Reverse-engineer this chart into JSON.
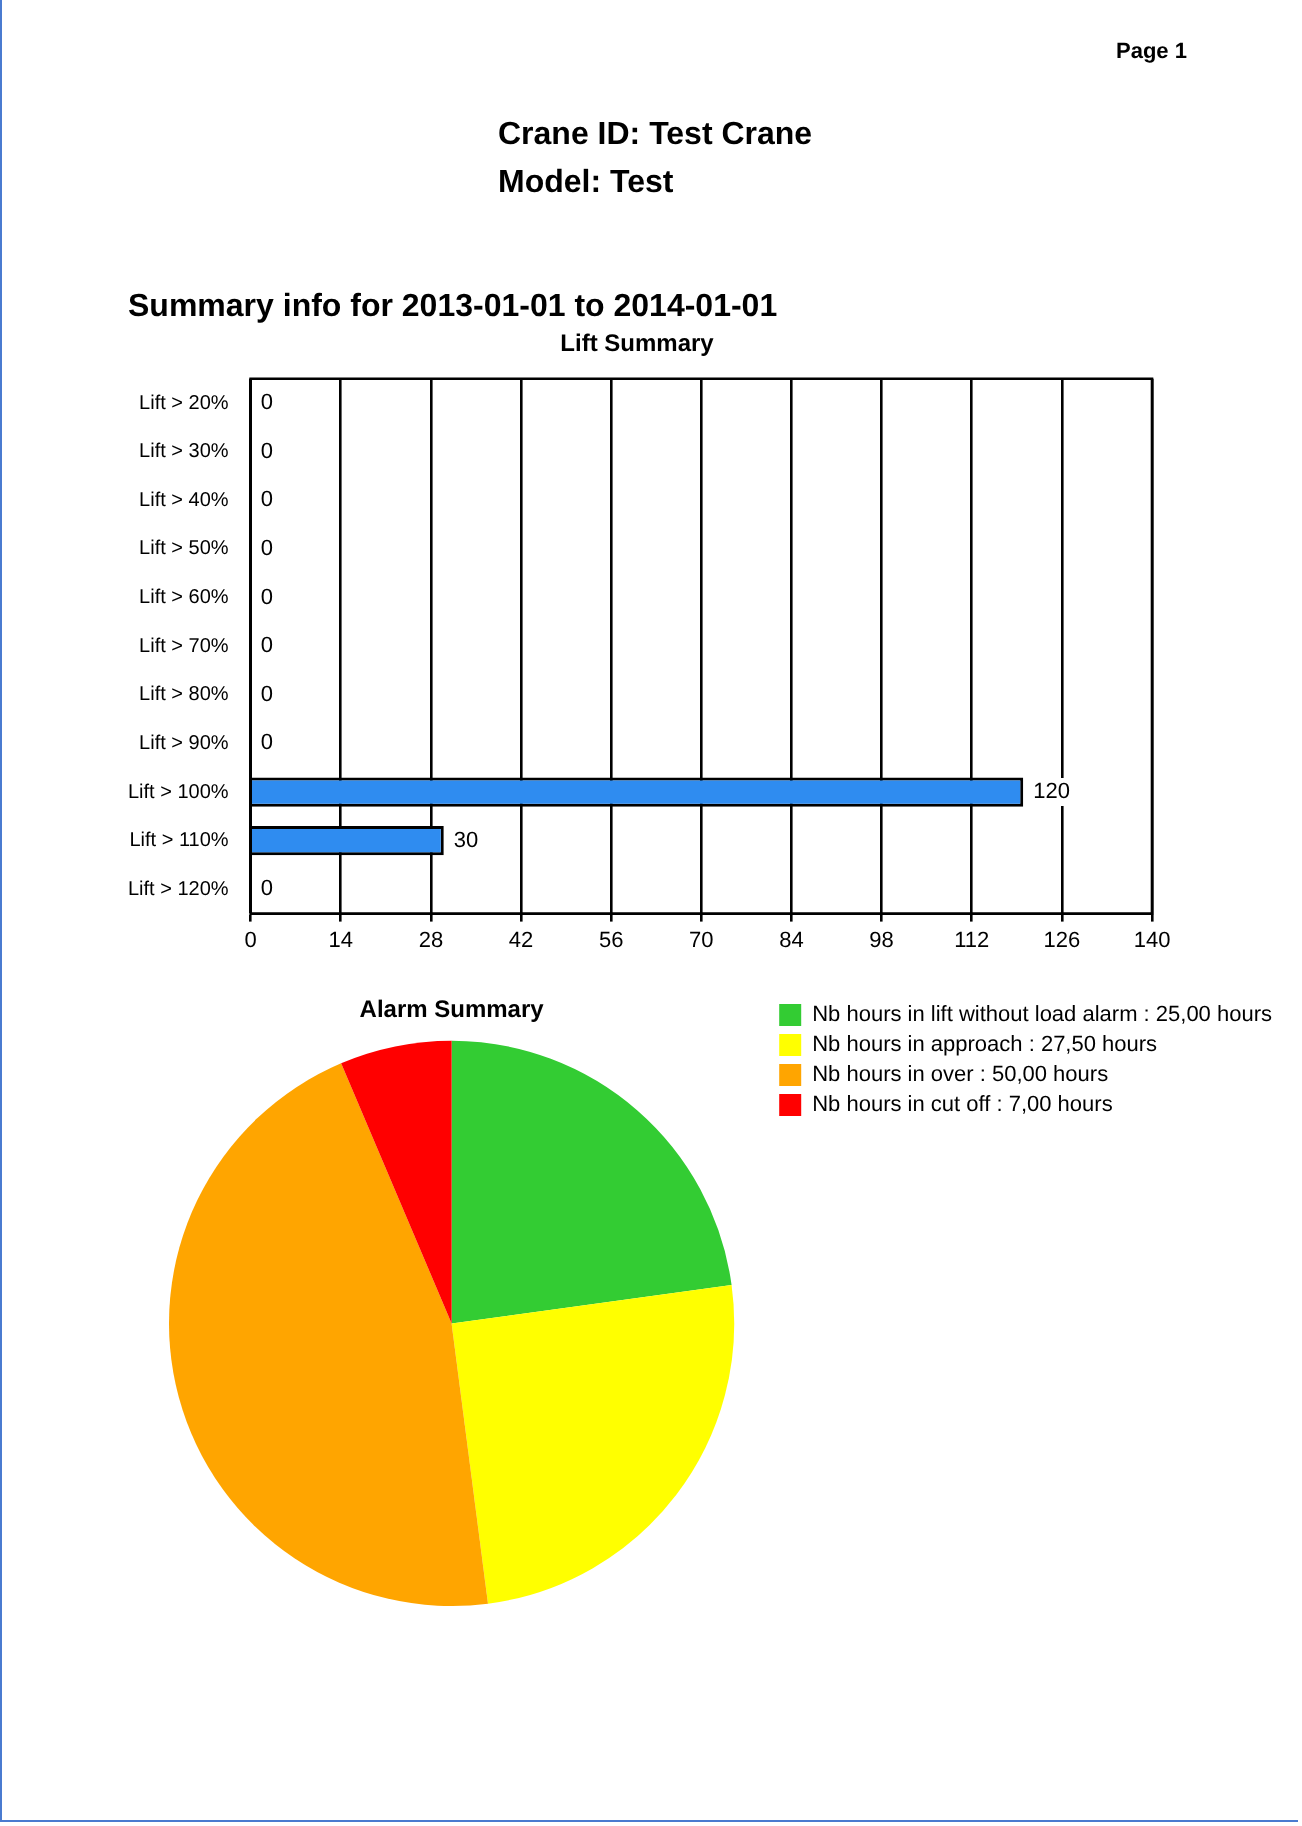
{
  "chart_data": [
    {
      "type": "bar",
      "title": "Lift Summary",
      "orientation": "horizontal",
      "annotations": [
        "Page 1",
        "Crane ID: Test Crane",
        "Model: Test",
        "Summary info for 2013-01-01 to 2014-01-01"
      ],
      "categories": [
        "Lift > 20%",
        "Lift > 30%",
        "Lift > 40%",
        "Lift > 50%",
        "Lift > 60%",
        "Lift > 70%",
        "Lift > 80%",
        "Lift > 90%",
        "Lift > 100%",
        "Lift > 110%",
        "Lift > 120%"
      ],
      "values": [
        0,
        0,
        0,
        0,
        0,
        0,
        0,
        0,
        120,
        30,
        0
      ],
      "color": "#2f8cf0",
      "xlim": [
        0,
        140
      ],
      "xticks": [
        0,
        14,
        28,
        42,
        56,
        70,
        84,
        98,
        112,
        126,
        140
      ],
      "grid": "x",
      "data_labels": true
    },
    {
      "type": "pie",
      "title": "Alarm Summary",
      "legend": "right",
      "categories": [
        "Nb hours in lift without load alarm : 25,00 hours",
        "Nb hours in approach : 27,50 hours",
        "Nb hours in over : 50,00 hours",
        "Nb hours in cut off : 7,00 hours"
      ],
      "values": [
        25,
        27.5,
        50,
        7
      ],
      "colors": [
        "#33cc33",
        "#ffff00",
        "#ffa500",
        "#ff0000"
      ]
    }
  ]
}
